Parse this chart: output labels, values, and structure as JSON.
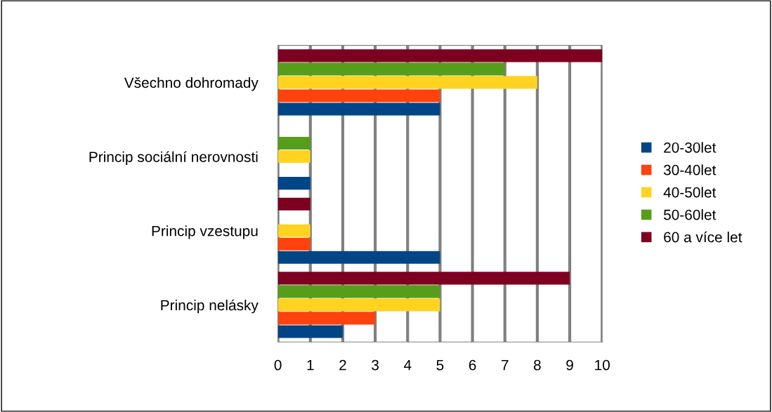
{
  "chart_data": {
    "type": "bar",
    "orientation": "horizontal",
    "categories": [
      "Všechno dohromady",
      "Princip sociální nerovnosti",
      "Princip vzestupu",
      "Princip nelásky"
    ],
    "series": [
      {
        "name": "20-30let",
        "color": "#004586",
        "values": [
          5,
          1,
          5,
          2
        ]
      },
      {
        "name": "30-40let",
        "color": "#ff420e",
        "values": [
          5,
          0,
          1,
          3
        ]
      },
      {
        "name": "40-50let",
        "color": "#ffd320",
        "values": [
          8,
          1,
          1,
          5
        ]
      },
      {
        "name": "50-60let",
        "color": "#579d1c",
        "values": [
          7,
          1,
          0,
          5
        ]
      },
      {
        "name": "60 a více let",
        "color": "#7e0021",
        "values": [
          10,
          0,
          1,
          9
        ]
      }
    ],
    "xlim": [
      0,
      10
    ],
    "xticks": [
      0,
      1,
      2,
      3,
      4,
      5,
      6,
      7,
      8,
      9,
      10
    ],
    "grid": "x",
    "legend": "right"
  }
}
